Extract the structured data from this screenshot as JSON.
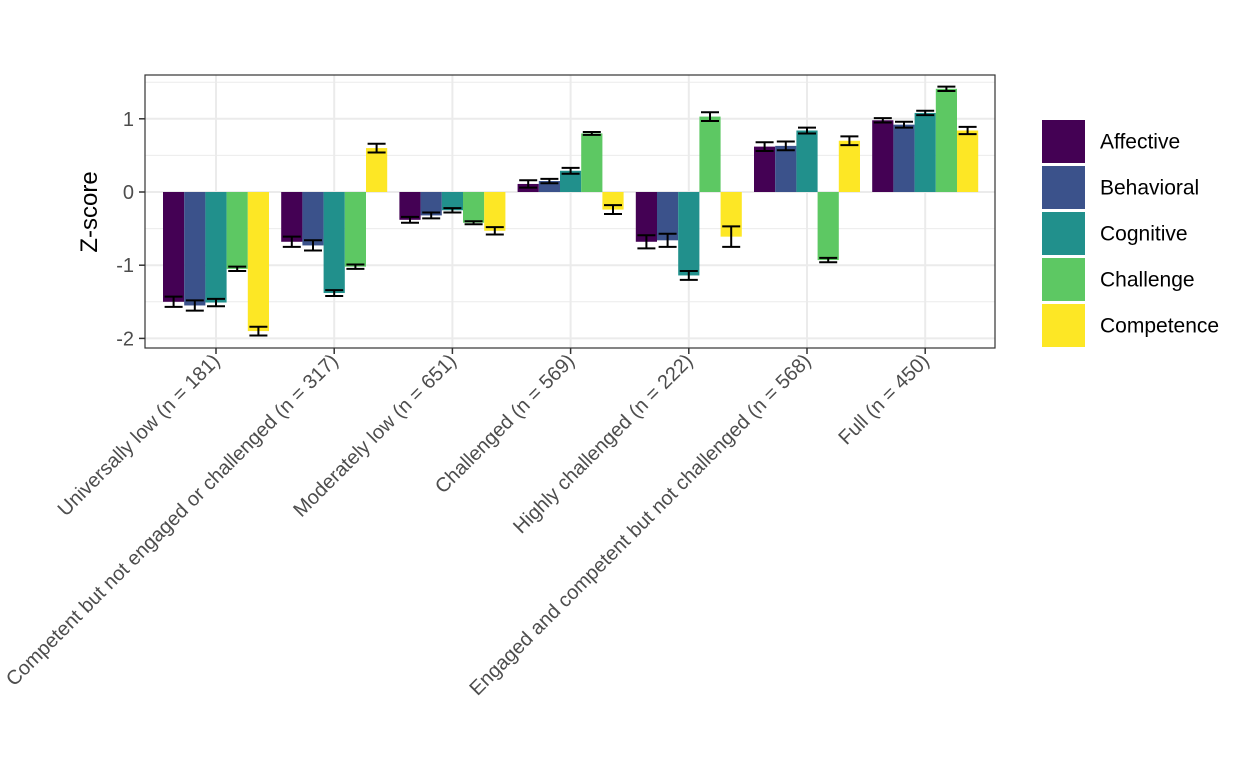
{
  "chart_data": {
    "type": "bar",
    "title": "",
    "xlabel": "",
    "ylabel": "Z-score",
    "ylim": [
      -2.1,
      1.6
    ],
    "yticks": [
      -2,
      -1,
      0,
      1
    ],
    "ytick_labels": [
      "-2",
      "-1",
      "0",
      "1"
    ],
    "grid": true,
    "legend_position": "right",
    "categories": [
      "Universally low (n = 181)",
      "Competent but not engaged or challenged (n = 317)",
      "Moderately low (n = 651)",
      "Challenged (n = 569)",
      "Highly challenged (n = 222)",
      "Engaged and competent but not challenged (n = 568)",
      "Full (n = 450)"
    ],
    "series": [
      {
        "name": "Affective",
        "color": "#440154",
        "values": [
          -1.5,
          -0.68,
          -0.38,
          0.11,
          -0.68,
          0.62,
          0.98
        ],
        "errors": [
          0.07,
          0.07,
          0.04,
          0.05,
          0.09,
          0.06,
          0.03
        ]
      },
      {
        "name": "Behavioral",
        "color": "#3B528B",
        "values": [
          -1.55,
          -0.73,
          -0.32,
          0.15,
          -0.66,
          0.63,
          0.92
        ],
        "errors": [
          0.07,
          0.07,
          0.04,
          0.03,
          0.09,
          0.06,
          0.04
        ]
      },
      {
        "name": "Cognitive",
        "color": "#21908C",
        "values": [
          -1.51,
          -1.38,
          -0.25,
          0.29,
          -1.14,
          0.84,
          1.08
        ],
        "errors": [
          0.05,
          0.04,
          0.03,
          0.04,
          0.06,
          0.04,
          0.03
        ]
      },
      {
        "name": "Challenge",
        "color": "#5DC863",
        "values": [
          -1.05,
          -1.02,
          -0.42,
          0.8,
          1.03,
          -0.93,
          1.41
        ],
        "errors": [
          0.03,
          0.03,
          0.02,
          0.02,
          0.06,
          0.03,
          0.03
        ]
      },
      {
        "name": "Competence",
        "color": "#FDE725",
        "values": [
          -1.9,
          0.6,
          -0.53,
          -0.24,
          -0.61,
          0.7,
          0.84
        ],
        "errors": [
          0.06,
          0.06,
          0.05,
          0.06,
          0.14,
          0.06,
          0.05
        ]
      }
    ]
  }
}
